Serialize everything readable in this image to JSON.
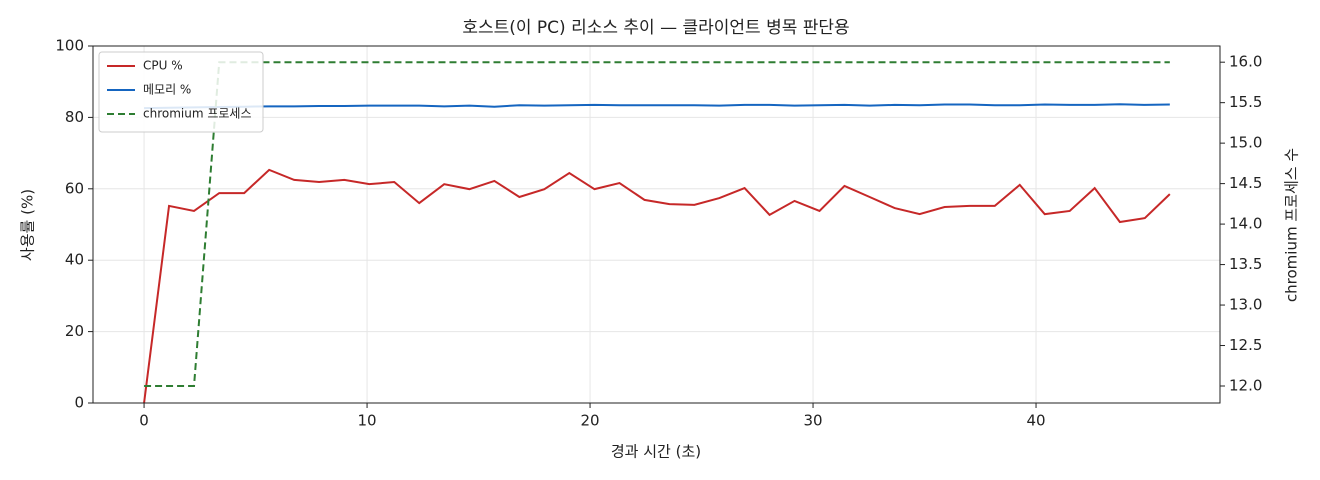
{
  "chart_data": {
    "type": "line",
    "title": "호스트(이 PC) 리소스 추이 — 클라이언트 병목 판단용",
    "x_label": "경과 시간 (초)",
    "y_label": "사용률 (%)",
    "y2_label": "chromium 프로세스 수",
    "x": [
      0,
      1.12,
      2.24,
      3.37,
      4.49,
      5.61,
      6.73,
      7.85,
      8.98,
      10.1,
      11.22,
      12.34,
      13.46,
      14.59,
      15.71,
      16.83,
      17.95,
      19.07,
      20.2,
      21.32,
      22.44,
      23.56,
      24.68,
      25.8,
      26.93,
      28.05,
      29.17,
      30.29,
      31.41,
      32.54,
      33.66,
      34.78,
      35.9,
      37.02,
      38.15,
      39.27,
      40.39,
      41.51,
      42.63,
      43.76,
      44.88,
      46.0
    ],
    "series": [
      {
        "name": "CPU %",
        "color": "#c62828",
        "linestyle": "solid",
        "axis": "y",
        "values": [
          0,
          55.2,
          53.8,
          58.8,
          58.8,
          65.3,
          62.5,
          61.9,
          62.5,
          61.3,
          61.9,
          56.0,
          61.3,
          59.9,
          62.2,
          57.7,
          59.9,
          64.4,
          59.9,
          61.6,
          56.9,
          55.7,
          55.5,
          57.4,
          60.2,
          52.7,
          56.6,
          53.8,
          60.8,
          57.7,
          54.6,
          52.9,
          54.9,
          55.2,
          55.2,
          61.1,
          52.9,
          53.8,
          60.2,
          50.7,
          51.8,
          58.5
        ]
      },
      {
        "name": "메모리 %",
        "color": "#1565c0",
        "linestyle": "solid",
        "axis": "y",
        "values": [
          82.6,
          82.7,
          82.8,
          82.9,
          83.0,
          83.1,
          83.1,
          83.2,
          83.2,
          83.3,
          83.3,
          83.3,
          83.1,
          83.3,
          83.0,
          83.4,
          83.3,
          83.4,
          83.5,
          83.4,
          83.4,
          83.4,
          83.4,
          83.3,
          83.5,
          83.5,
          83.3,
          83.4,
          83.5,
          83.3,
          83.5,
          83.4,
          83.6,
          83.6,
          83.4,
          83.4,
          83.6,
          83.5,
          83.5,
          83.7,
          83.5,
          83.6
        ]
      },
      {
        "name": "chromium 프로세스",
        "color": "#2e7d32",
        "linestyle": "dashed",
        "axis": "y2",
        "values": [
          12,
          12,
          12,
          16,
          16,
          16,
          16,
          16,
          16,
          16,
          16,
          16,
          16,
          16,
          16,
          16,
          16,
          16,
          16,
          16,
          16,
          16,
          16,
          16,
          16,
          16,
          16,
          16,
          16,
          16,
          16,
          16,
          16,
          16,
          16,
          16,
          16,
          16,
          16,
          16,
          16,
          16
        ]
      }
    ],
    "xlim": [
      -2.29,
      48.25
    ],
    "xticks": [
      0,
      10,
      20,
      30,
      40
    ],
    "ylim": [
      0,
      100
    ],
    "yticks": [
      0,
      20,
      40,
      60,
      80,
      100
    ],
    "y2lim": [
      11.79,
      16.2
    ],
    "y2ticks": [
      {
        "value": 12,
        "label": "12.0"
      },
      {
        "value": 12.5,
        "label": "12.5"
      },
      {
        "value": 13,
        "label": "13.0"
      },
      {
        "value": 13.5,
        "label": "13.5"
      },
      {
        "value": 14,
        "label": "14.0"
      },
      {
        "value": 14.5,
        "label": "14.5"
      },
      {
        "value": 15,
        "label": "15.0"
      },
      {
        "value": 15.5,
        "label": "15.5"
      },
      {
        "value": 16,
        "label": "16.0"
      }
    ],
    "grid": true,
    "legend": "upper-left"
  }
}
